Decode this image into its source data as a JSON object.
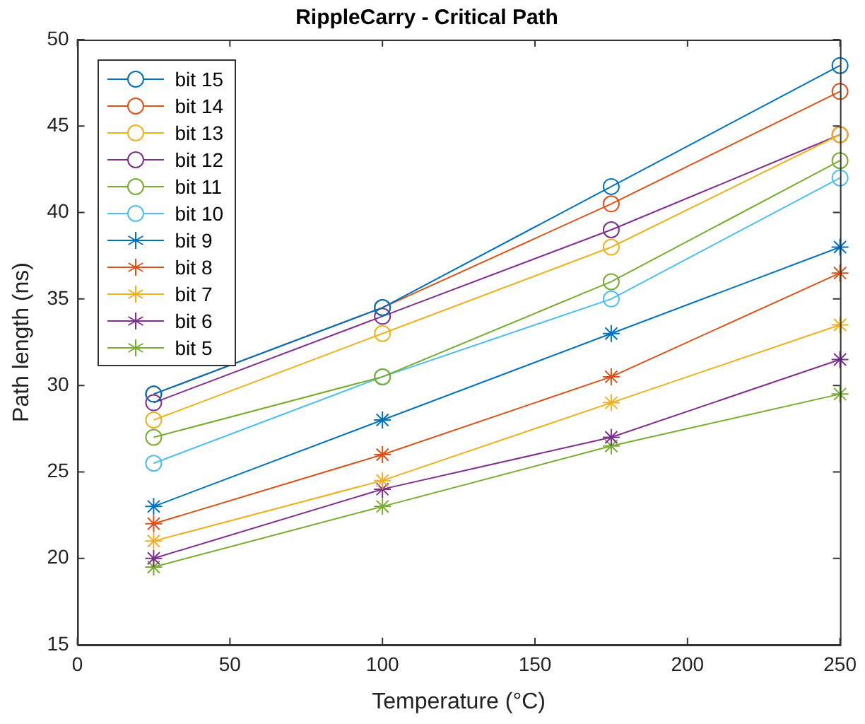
{
  "chart_data": {
    "type": "line",
    "title": "RippleCarry - Critical Path",
    "xlabel": "Temperature (°C)",
    "ylabel": "Path length (ns)",
    "x": [
      25,
      100,
      175,
      250
    ],
    "xlim": [
      0,
      250
    ],
    "xticks": [
      0,
      50,
      100,
      150,
      200,
      250
    ],
    "ylim": [
      15,
      50
    ],
    "yticks": [
      15,
      20,
      25,
      30,
      35,
      40,
      45,
      50
    ],
    "grid": false,
    "legend": "top left",
    "line_style": "solid",
    "series": [
      {
        "name": "bit 15",
        "color": "#0072bd",
        "marker": "circle",
        "values": [
          29.5,
          34.5,
          41.5,
          48.5
        ]
      },
      {
        "name": "bit 14",
        "color": "#d95319",
        "marker": "circle",
        "values": [
          29.5,
          34.5,
          40.5,
          47
        ]
      },
      {
        "name": "bit 13",
        "color": "#edb120",
        "marker": "circle",
        "values": [
          28,
          33,
          38,
          44.5
        ]
      },
      {
        "name": "bit 12",
        "color": "#7e2f8e",
        "marker": "circle",
        "values": [
          29,
          34,
          39,
          44.5
        ]
      },
      {
        "name": "bit 11",
        "color": "#77ac30",
        "marker": "circle",
        "values": [
          27,
          30.5,
          36,
          43
        ]
      },
      {
        "name": "bit 10",
        "color": "#4dbeee",
        "marker": "circle",
        "values": [
          25.5,
          30.5,
          35,
          42
        ]
      },
      {
        "name": "bit 9",
        "color": "#0072bd",
        "marker": "cross",
        "values": [
          23,
          28,
          33,
          38
        ]
      },
      {
        "name": "bit 8",
        "color": "#d95319",
        "marker": "cross",
        "values": [
          22,
          26,
          30.5,
          36.5
        ]
      },
      {
        "name": "bit 7",
        "color": "#edb120",
        "marker": "cross",
        "values": [
          21,
          24.5,
          29,
          33.5
        ]
      },
      {
        "name": "bit 6",
        "color": "#7e2f8e",
        "marker": "cross",
        "values": [
          20,
          24,
          27,
          31.5
        ]
      },
      {
        "name": "bit 5",
        "color": "#77ac30",
        "marker": "cross",
        "values": [
          19.5,
          23,
          26.5,
          29.5
        ]
      }
    ]
  }
}
